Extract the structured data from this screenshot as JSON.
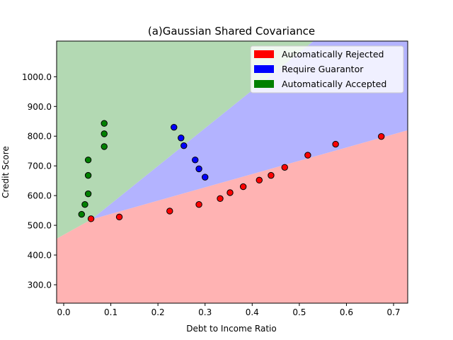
{
  "chart_data": {
    "type": "scatter",
    "title": "(a)Gaussian Shared Covariance",
    "xlabel": "Debt to Income Ratio",
    "ylabel": "Credit Score",
    "xlim": [
      -0.015,
      0.73
    ],
    "ylim": [
      238,
      1120
    ],
    "xticks": [
      0.0,
      0.1,
      0.2,
      0.3,
      0.4,
      0.5,
      0.6,
      0.7
    ],
    "xtick_labels": [
      "0.0",
      "0.1",
      "0.2",
      "0.3",
      "0.4",
      "0.5",
      "0.6",
      "0.7"
    ],
    "yticks": [
      300,
      400,
      500,
      600,
      700,
      800,
      900,
      1000
    ],
    "ytick_labels": [
      "300.0",
      "400.0",
      "500.0",
      "600.0",
      "700.0",
      "800.0",
      "900.0",
      "1000.0"
    ],
    "grid": false,
    "legend_position": "top-right",
    "regions": [
      {
        "name": "Automatically Rejected",
        "color": "#ffb3b3",
        "polygon": [
          [
            -0.015,
            238
          ],
          [
            0.73,
            238
          ],
          [
            0.73,
            820
          ],
          [
            0.059,
            520
          ],
          [
            -0.015,
            455
          ]
        ]
      },
      {
        "name": "Require Guarantor",
        "color": "#b3b3ff",
        "polygon": [
          [
            0.059,
            520
          ],
          [
            0.73,
            820
          ],
          [
            0.73,
            1120
          ],
          [
            0.53,
            1120
          ]
        ]
      },
      {
        "name": "Automatically Accepted",
        "color": "#b3d9b3",
        "polygon": [
          [
            -0.015,
            455
          ],
          [
            0.059,
            520
          ],
          [
            0.53,
            1120
          ],
          [
            -0.015,
            1120
          ]
        ]
      }
    ],
    "series": [
      {
        "name": "Automatically Rejected",
        "color": "#ff0000",
        "points": [
          [
            0.058,
            522
          ],
          [
            0.118,
            528
          ],
          [
            0.225,
            548
          ],
          [
            0.287,
            570
          ],
          [
            0.332,
            590
          ],
          [
            0.353,
            610
          ],
          [
            0.381,
            630
          ],
          [
            0.415,
            652
          ],
          [
            0.44,
            668
          ],
          [
            0.469,
            695
          ],
          [
            0.518,
            736
          ],
          [
            0.577,
            773
          ],
          [
            0.674,
            799
          ]
        ]
      },
      {
        "name": "Require Guarantor",
        "color": "#0000ff",
        "points": [
          [
            0.234,
            830
          ],
          [
            0.249,
            794
          ],
          [
            0.255,
            768
          ],
          [
            0.279,
            720
          ],
          [
            0.287,
            690
          ],
          [
            0.3,
            662
          ]
        ]
      },
      {
        "name": "Automatically Accepted",
        "color": "#008000",
        "points": [
          [
            0.038,
            537
          ],
          [
            0.045,
            570
          ],
          [
            0.052,
            606
          ],
          [
            0.052,
            668
          ],
          [
            0.052,
            720
          ],
          [
            0.086,
            765
          ],
          [
            0.086,
            808
          ],
          [
            0.086,
            843
          ]
        ]
      }
    ],
    "legend": [
      {
        "label": "Automatically Rejected",
        "color": "#ff0000"
      },
      {
        "label": "Require Guarantor",
        "color": "#0000ff"
      },
      {
        "label": "Automatically Accepted",
        "color": "#008000"
      }
    ]
  }
}
